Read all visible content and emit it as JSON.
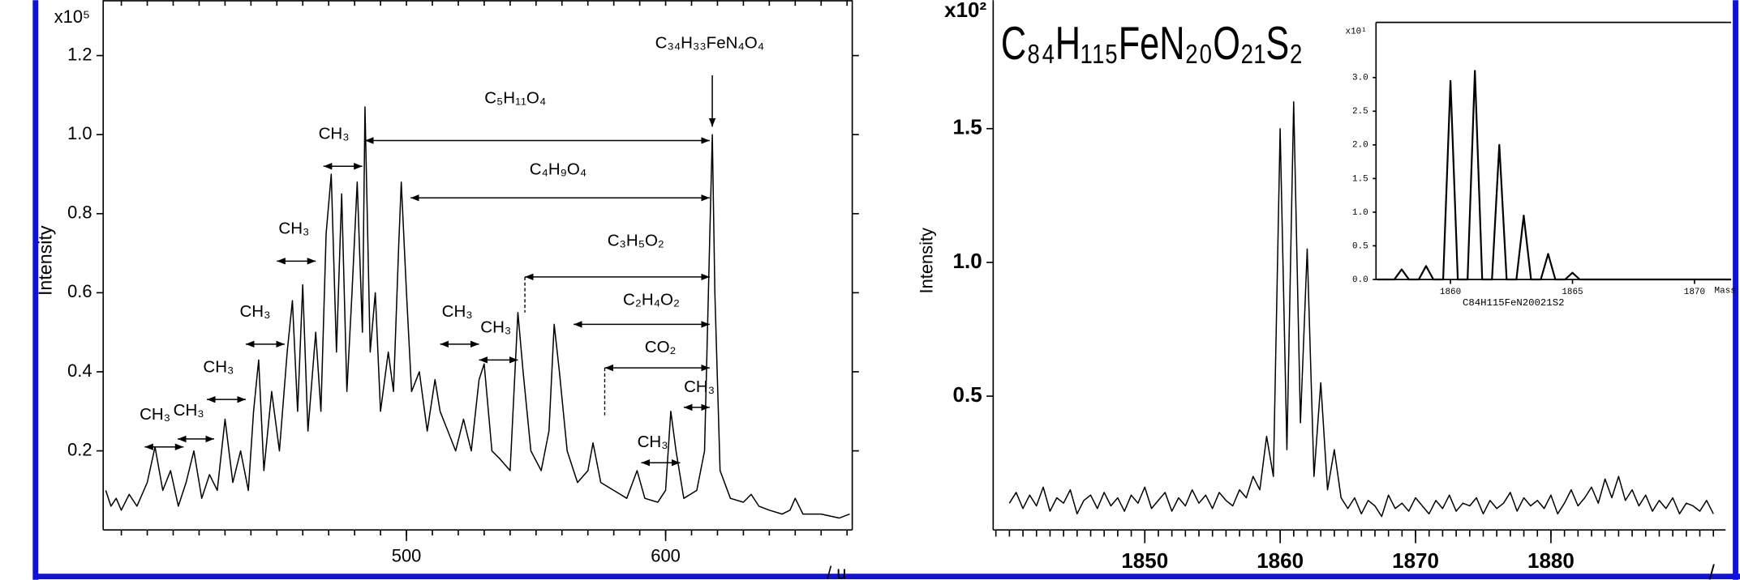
{
  "chart_data": [
    {
      "type": "line",
      "color": "#000000",
      "y_label": "Intensity",
      "multiplier": "x10⁵",
      "x_label": "/ u",
      "xlim": [
        383,
        672
      ],
      "ylim": [
        0,
        1.34
      ],
      "xticks": [
        500,
        600
      ],
      "xminorticks": [
        390,
        400,
        410,
        420,
        430,
        440,
        450,
        460,
        470,
        480,
        490,
        500,
        510,
        520,
        530,
        540,
        550,
        560,
        570,
        580,
        590,
        600,
        610,
        620,
        630,
        640,
        650,
        660,
        670
      ],
      "yticks": [
        0.2,
        0.4,
        0.6,
        0.8,
        {
          "value": 1.0,
          "label": "1.0"
        },
        1.2
      ],
      "x": [
        384,
        386,
        388,
        390,
        393,
        396,
        400,
        403,
        406,
        409,
        412,
        415,
        418,
        421,
        424,
        427,
        430,
        433,
        436,
        439,
        441,
        443,
        445,
        448,
        451,
        454,
        456,
        458,
        460,
        462,
        465,
        467,
        469,
        471,
        473,
        475,
        477,
        479,
        481,
        483,
        484,
        486,
        488,
        490,
        493,
        495,
        497,
        498,
        500,
        502,
        505,
        508,
        511,
        513,
        516,
        519,
        522,
        525,
        528,
        530,
        533,
        536,
        540,
        543,
        545,
        548,
        552,
        555,
        557,
        559,
        562,
        566,
        570,
        572,
        575,
        580,
        585,
        589,
        592,
        597,
        600,
        602,
        604,
        607,
        612,
        615,
        617,
        618,
        619,
        621,
        625,
        630,
        633,
        636,
        640,
        645,
        648,
        650,
        653,
        660,
        667,
        671
      ],
      "values": [
        0.1,
        0.06,
        0.08,
        0.05,
        0.09,
        0.06,
        0.12,
        0.21,
        0.1,
        0.15,
        0.06,
        0.12,
        0.2,
        0.08,
        0.14,
        0.1,
        0.28,
        0.12,
        0.2,
        0.1,
        0.3,
        0.43,
        0.15,
        0.35,
        0.2,
        0.45,
        0.58,
        0.3,
        0.62,
        0.25,
        0.5,
        0.3,
        0.75,
        0.9,
        0.45,
        0.85,
        0.35,
        0.6,
        0.88,
        0.5,
        1.07,
        0.45,
        0.6,
        0.3,
        0.45,
        0.35,
        0.72,
        0.88,
        0.6,
        0.35,
        0.4,
        0.25,
        0.38,
        0.3,
        0.25,
        0.2,
        0.28,
        0.2,
        0.38,
        0.42,
        0.2,
        0.18,
        0.15,
        0.55,
        0.4,
        0.2,
        0.15,
        0.25,
        0.52,
        0.4,
        0.2,
        0.12,
        0.15,
        0.22,
        0.12,
        0.1,
        0.08,
        0.15,
        0.08,
        0.07,
        0.1,
        0.3,
        0.2,
        0.08,
        0.1,
        0.2,
        0.73,
        1.0,
        0.6,
        0.15,
        0.08,
        0.07,
        0.09,
        0.06,
        0.05,
        0.04,
        0.05,
        0.08,
        0.04,
        0.04,
        0.03,
        0.04
      ],
      "annotations": [
        "C₃₄H₃₃FeN₄O₄",
        "C₅H₁₁O₄",
        "CH₃",
        "C₄H₉O₄",
        "CH₃",
        "C₃H₅O₂",
        "C₂H₄O₂",
        "CH₃",
        "CH₃",
        "CH₃",
        "CO₂",
        "CH₃",
        "CH₃",
        "CH₃",
        "CH₃",
        "CH₃"
      ]
    },
    {
      "type": "line",
      "color": "#000000",
      "title": "C₈₄H₁₁₅FeN₂₀O₂₁S₂",
      "y_label": "Intensity",
      "multiplier": "x10²",
      "x_label": "/",
      "xlim": [
        1838.8,
        1892.9
      ],
      "ylim": [
        0,
        1.98
      ],
      "xticks": [
        1850,
        1860,
        1870,
        1880
      ],
      "xminorticks": [
        1839,
        1840,
        1841,
        1842,
        1843,
        1844,
        1845,
        1846,
        1847,
        1848,
        1849,
        1850,
        1851,
        1852,
        1853,
        1854,
        1855,
        1856,
        1857,
        1858,
        1859,
        1860,
        1861,
        1862,
        1863,
        1864,
        1865,
        1866,
        1867,
        1868,
        1869,
        1870,
        1871,
        1872,
        1873,
        1874,
        1875,
        1876,
        1877,
        1878,
        1879,
        1880,
        1881,
        1882,
        1883,
        1884,
        1885,
        1886,
        1887,
        1888,
        1889,
        1890,
        1891,
        1892
      ],
      "yticks": [
        0.5,
        {
          "value": 1.0,
          "label": "1.0"
        },
        1.5
      ],
      "x": [
        1840,
        1840.5,
        1841,
        1841.5,
        1842,
        1842.5,
        1843,
        1843.5,
        1844,
        1844.5,
        1845,
        1845.5,
        1846,
        1846.5,
        1847,
        1847.5,
        1848,
        1848.5,
        1849,
        1849.5,
        1850,
        1850.5,
        1851,
        1851.5,
        1852,
        1852.5,
        1853,
        1853.5,
        1854,
        1854.5,
        1855,
        1855.5,
        1856,
        1856.5,
        1857,
        1857.5,
        1858,
        1858.5,
        1859,
        1859.5,
        1860,
        1860.5,
        1861,
        1861.5,
        1862,
        1862.5,
        1863,
        1863.5,
        1864,
        1864.5,
        1865,
        1865.5,
        1866,
        1866.5,
        1867,
        1867.5,
        1868,
        1868.5,
        1869,
        1869.5,
        1870,
        1870.5,
        1871,
        1871.5,
        1872,
        1872.5,
        1873,
        1873.5,
        1874,
        1874.5,
        1875,
        1875.5,
        1876,
        1876.5,
        1877,
        1877.5,
        1878,
        1878.5,
        1879,
        1879.5,
        1880,
        1880.5,
        1881,
        1881.5,
        1882,
        1882.5,
        1883,
        1883.5,
        1884,
        1884.5,
        1885,
        1885.5,
        1886,
        1886.5,
        1887,
        1887.5,
        1888,
        1888.5,
        1889,
        1889.5,
        1890,
        1890.5,
        1891,
        1891.5,
        1892
      ],
      "values": [
        0.1,
        0.14,
        0.08,
        0.13,
        0.09,
        0.16,
        0.07,
        0.12,
        0.1,
        0.15,
        0.06,
        0.11,
        0.13,
        0.08,
        0.14,
        0.09,
        0.12,
        0.07,
        0.13,
        0.1,
        0.16,
        0.08,
        0.11,
        0.14,
        0.07,
        0.12,
        0.09,
        0.15,
        0.1,
        0.13,
        0.08,
        0.14,
        0.11,
        0.09,
        0.15,
        0.12,
        0.2,
        0.15,
        0.35,
        0.2,
        1.5,
        0.3,
        1.6,
        0.4,
        1.05,
        0.2,
        0.55,
        0.15,
        0.3,
        0.12,
        0.08,
        0.12,
        0.06,
        0.11,
        0.09,
        0.05,
        0.13,
        0.08,
        0.1,
        0.07,
        0.12,
        0.09,
        0.06,
        0.11,
        0.08,
        0.13,
        0.07,
        0.1,
        0.09,
        0.12,
        0.06,
        0.11,
        0.08,
        0.1,
        0.14,
        0.07,
        0.12,
        0.09,
        0.11,
        0.08,
        0.13,
        0.06,
        0.1,
        0.15,
        0.09,
        0.12,
        0.16,
        0.1,
        0.19,
        0.12,
        0.2,
        0.11,
        0.15,
        0.09,
        0.13,
        0.07,
        0.11,
        0.08,
        0.12,
        0.06,
        0.1,
        0.09,
        0.07,
        0.11,
        0.06
      ]
    },
    {
      "type": "line",
      "color": "#000000",
      "title": "C84H115FeN20021S2",
      "multiplier": "x10¹",
      "x_label": "Mass",
      "xlim": [
        1856.95,
        1871.5
      ],
      "ylim": [
        0,
        3.82
      ],
      "xticks": [
        1860,
        1865,
        1870
      ],
      "yticks": [
        {
          "value": 0.0,
          "label": "0.0"
        },
        0.5,
        {
          "value": 1.0,
          "label": "1.0"
        },
        1.5,
        {
          "value": 2.0,
          "label": "2.0"
        },
        2.5,
        {
          "value": 3.0,
          "label": "3.0"
        }
      ],
      "x": [
        1857,
        1857.7,
        1858,
        1858.3,
        1858.7,
        1859,
        1859.3,
        1859.7,
        1860,
        1860.3,
        1860.7,
        1861,
        1861.3,
        1861.7,
        1862,
        1862.3,
        1862.7,
        1863,
        1863.3,
        1863.7,
        1864,
        1864.3,
        1864.7,
        1865,
        1865.3,
        1871.5
      ],
      "values": [
        0,
        0,
        0.15,
        0,
        0,
        0.2,
        0,
        0,
        2.95,
        0,
        0,
        3.1,
        0,
        0,
        2.0,
        0,
        0,
        0.95,
        0,
        0,
        0.38,
        0,
        0,
        0.1,
        0,
        0
      ]
    }
  ]
}
